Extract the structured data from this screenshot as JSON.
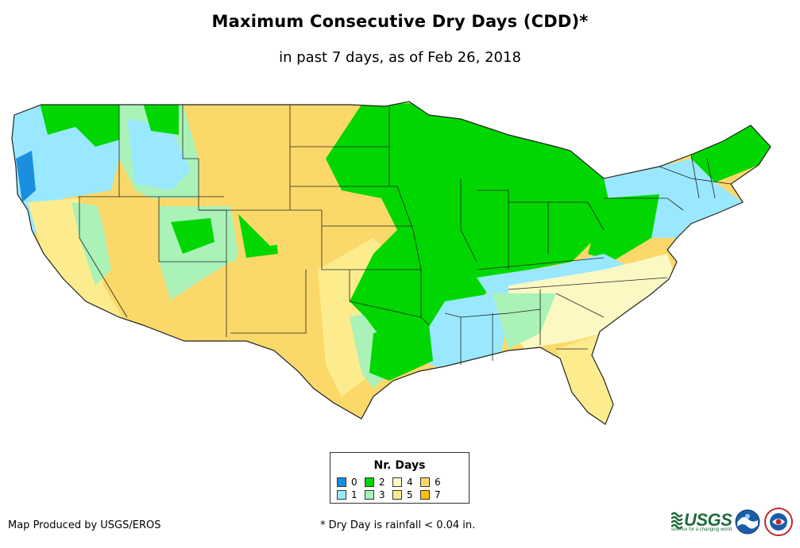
{
  "title": "Maximum Consecutive Dry Days (CDD)*",
  "subtitle": "in past 7 days, as of Feb 26, 2018",
  "legend": {
    "title": "Nr. Days",
    "items": [
      {
        "label": "0",
        "color": "#1a8fe0"
      },
      {
        "label": "1",
        "color": "#9ae8ff"
      },
      {
        "label": "2",
        "color": "#00d700"
      },
      {
        "label": "3",
        "color": "#aaf2b8"
      },
      {
        "label": "4",
        "color": "#fbf8c4"
      },
      {
        "label": "5",
        "color": "#fcec8e"
      },
      {
        "label": "6",
        "color": "#fbd86a"
      },
      {
        "label": "7",
        "color": "#ffc107"
      }
    ]
  },
  "footer": {
    "credit": "Map Produced by USGS/EROS",
    "note": "* Dry Day is rainfall < 0.04 in."
  },
  "logos": {
    "usgs": "USGS",
    "usgs_tagline": "science for a changing world",
    "noaa": "NOAA",
    "nws": "NATIONAL WEATHER SERVICE"
  },
  "map": {
    "region": "Contiguous United States",
    "outline_color": "#222222"
  }
}
